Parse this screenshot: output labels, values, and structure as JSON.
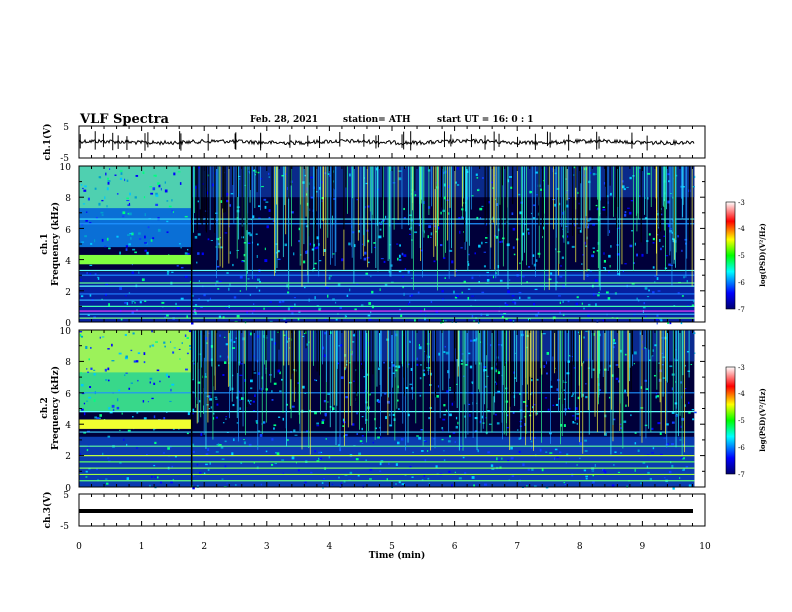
{
  "header": {
    "title": "VLF Spectra",
    "date": "Feb. 28, 2021",
    "station": "station= ATH",
    "start": "start  UT =   16: 0  : 1"
  },
  "chart_data": [
    {
      "type": "line",
      "name": "ch1-waveform",
      "ylabel": "ch.1(V)",
      "ylim": [
        -5,
        5
      ],
      "yticks": [
        "5",
        "-5"
      ],
      "xlim": [
        0,
        10
      ],
      "baseline_value": 0,
      "trace_color": "#000000"
    },
    {
      "type": "heatmap",
      "name": "ch1-spectrogram",
      "ylabel_line1": "ch.1",
      "ylabel_line2": "Frequency (kHz)",
      "xlim": [
        0,
        10
      ],
      "ylim": [
        0,
        10
      ],
      "yticks": [
        "0",
        "2",
        "4",
        "6",
        "8",
        "10"
      ],
      "data_end_min": 9.83,
      "regime_change_min": 1.8,
      "colorbar": {
        "label": "log(PSD)(V²/Hz)",
        "range": [
          -7,
          -3
        ],
        "ticks": [
          "-3",
          "-4",
          "-5",
          "-6",
          "-7"
        ]
      },
      "features": [
        {
          "freq_khz": 6.6,
          "level": "cyan"
        },
        {
          "freq_khz": 4.0,
          "level": "green-yellow",
          "time_range_min": [
            0,
            1.8
          ]
        },
        {
          "freq_khz": 3.3,
          "level": "cyan"
        },
        {
          "freq_khz": 2.3,
          "level": "cyan"
        },
        {
          "freq_khz": 0.7,
          "level": "magenta"
        }
      ]
    },
    {
      "type": "heatmap",
      "name": "ch2-spectrogram",
      "ylabel_line1": "ch.2",
      "ylabel_line2": "Frequency (kHz)",
      "xlim": [
        0,
        10
      ],
      "ylim": [
        0,
        10
      ],
      "yticks": [
        "0",
        "2",
        "4",
        "6",
        "8",
        "10"
      ],
      "data_end_min": 9.83,
      "regime_change_min": 1.8,
      "colorbar": {
        "label": "log(PSD)(V²/Hz)",
        "range": [
          -7,
          -3
        ],
        "ticks": [
          "-3",
          "-4",
          "-5",
          "-6",
          "-7"
        ]
      },
      "features": [
        {
          "freq_khz": 4.8,
          "level": "cyan"
        },
        {
          "freq_khz": 4.0,
          "level": "yellow",
          "time_range_min": [
            0,
            1.8
          ]
        },
        {
          "freq_khz": 2.0,
          "level": "green"
        },
        {
          "freq_khz": 0.8,
          "level": "green"
        }
      ]
    },
    {
      "type": "line",
      "name": "ch3-waveform",
      "ylabel": "ch.3(V)",
      "ylim": [
        -5,
        5
      ],
      "yticks": [
        "5",
        "-5"
      ],
      "xlim": [
        0,
        10
      ],
      "baseline_value": 0,
      "trace_color": "#000000"
    }
  ],
  "xaxis": {
    "label": "Time  (min)",
    "ticks": [
      "0",
      "1",
      "2",
      "3",
      "4",
      "5",
      "6",
      "7",
      "8",
      "9",
      "10"
    ]
  }
}
